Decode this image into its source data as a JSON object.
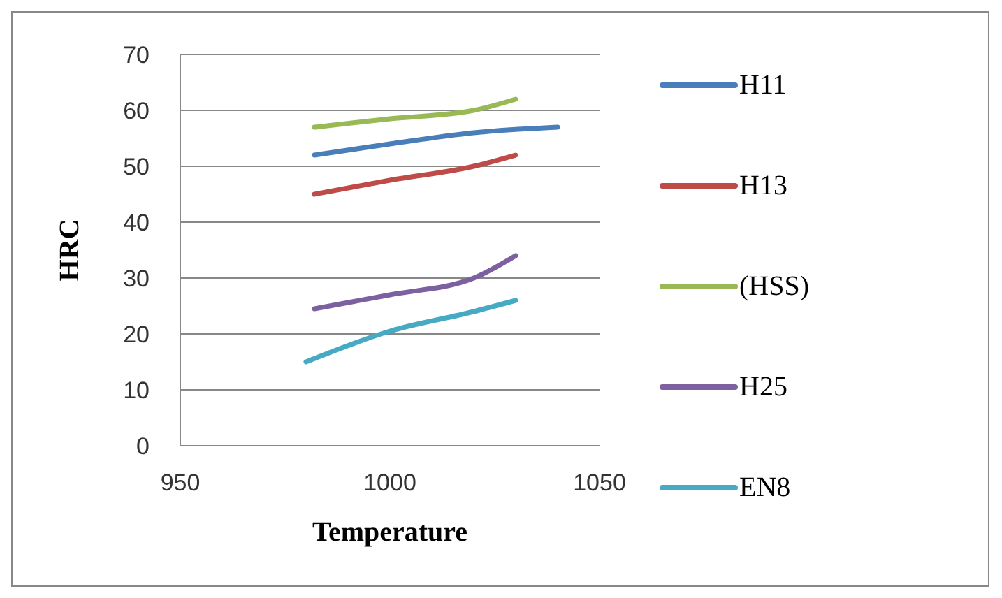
{
  "chart_data": {
    "type": "line",
    "xlabel": "Temperature",
    "ylabel": "HRC",
    "xlim": [
      950,
      1050
    ],
    "xticks": [
      950,
      1000,
      1050
    ],
    "ylim": [
      0,
      70
    ],
    "yticks": [
      0,
      10,
      20,
      30,
      40,
      50,
      60,
      70
    ],
    "grid": "y",
    "legend": "right",
    "marker": "none",
    "line_style": "solid",
    "series": [
      {
        "name": "H11",
        "color": "#4a7ebb",
        "x": [
          982,
          1000,
          1020,
          1040
        ],
        "values": [
          52,
          54,
          56,
          57
        ]
      },
      {
        "name": "H13",
        "color": "#be4b48",
        "x": [
          982,
          1000,
          1020,
          1030
        ],
        "values": [
          45,
          47.5,
          50,
          52
        ]
      },
      {
        "name": "(HSS)",
        "color": "#98b954",
        "x": [
          982,
          1000,
          1020,
          1030
        ],
        "values": [
          57,
          58.5,
          60,
          62
        ]
      },
      {
        "name": "H25",
        "color": "#7d60a0",
        "x": [
          982,
          1000,
          1020,
          1030
        ],
        "values": [
          24.5,
          27,
          30,
          34
        ]
      },
      {
        "name": "EN8",
        "color": "#46aac5",
        "x": [
          980,
          1000,
          1020,
          1030
        ],
        "values": [
          15,
          20.5,
          24,
          26
        ]
      }
    ]
  }
}
